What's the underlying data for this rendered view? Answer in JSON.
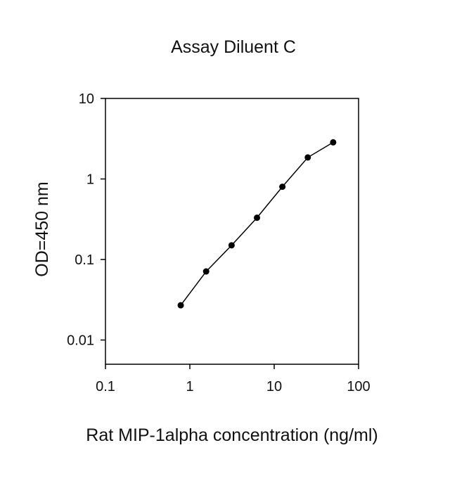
{
  "chart_data": {
    "type": "line",
    "title": "Assay Diluent C",
    "xlabel": "Rat MIP-1alpha concentration (ng/ml)",
    "ylabel": "OD=450 nm",
    "x_scale": "log",
    "y_scale": "log",
    "xlim": [
      0.1,
      100
    ],
    "ylim": [
      0.005,
      10
    ],
    "x_ticks": [
      0.1,
      1,
      10,
      100
    ],
    "x_tick_labels": [
      "0.1",
      "1",
      "10",
      "100"
    ],
    "y_ticks": [
      0.01,
      0.1,
      1,
      10
    ],
    "y_tick_labels": [
      "0.01",
      "0.1",
      "1",
      "10"
    ],
    "grid": false,
    "legend": "none",
    "series": [
      {
        "x": [
          0.78,
          1.56,
          3.125,
          6.25,
          12.5,
          25,
          50
        ],
        "y": [
          0.027,
          0.071,
          0.15,
          0.33,
          0.8,
          1.85,
          2.85
        ]
      }
    ],
    "colors": {
      "line": "#000000",
      "marker": "#000000",
      "axis": "#000000"
    }
  }
}
